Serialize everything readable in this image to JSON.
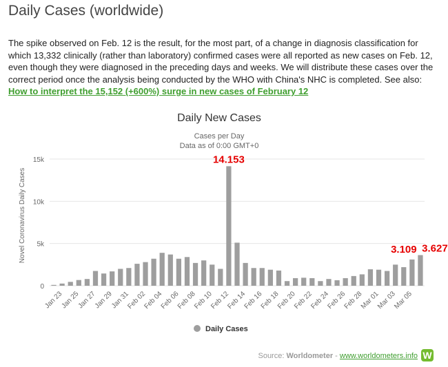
{
  "page": {
    "title": "Daily Cases (worldwide)",
    "intro": "The spike observed on Feb. 12 is the result, for the most part, of a change in diagnosis classification for which 13,332 clinically (rather than laboratory) confirmed cases were all reported as new cases on Feb. 12, even though they were diagnosed in the preceding days and weeks. We will distribute these cases over the correct period once the analysis being conducted by the WHO with China's NHC is completed.",
    "see_also_label": "See also:",
    "see_also_link": "How to interpret the 15,152 (+600%) surge in new cases of February 12",
    "source_label": "Source:",
    "source_name": "Worldometer",
    "source_sep": "-",
    "source_link": "www.worldometers.info",
    "logo_letter": "W"
  },
  "colors": {
    "bar": "#9e9e9e",
    "annotation": "#e60000",
    "link": "#3f9e2f",
    "grid": "#e6e6e6"
  },
  "chart_data": {
    "type": "bar",
    "title": "Daily New Cases",
    "subtitle_line1": "Cases per Day",
    "subtitle_line2": "Data as of 0:00 GMT+0",
    "ylabel": "Novel Coronavirus Daily Cases",
    "xlabel": "",
    "ylim": [
      0,
      15000
    ],
    "yticks": [
      0,
      5000,
      10000,
      15000
    ],
    "ytick_labels": [
      "0",
      "5k",
      "10k",
      "15k"
    ],
    "grid": true,
    "legend": {
      "position": "bottom",
      "entries": [
        "Daily Cases"
      ]
    },
    "x": [
      "Jan 22",
      "Jan 23",
      "Jan 24",
      "Jan 25",
      "Jan 26",
      "Jan 27",
      "Jan 28",
      "Jan 29",
      "Jan 30",
      "Jan 31",
      "Feb 01",
      "Feb 02",
      "Feb 03",
      "Feb 04",
      "Feb 05",
      "Feb 06",
      "Feb 07",
      "Feb 08",
      "Feb 09",
      "Feb 10",
      "Feb 11",
      "Feb 12",
      "Feb 13",
      "Feb 14",
      "Feb 15",
      "Feb 16",
      "Feb 17",
      "Feb 18",
      "Feb 19",
      "Feb 20",
      "Feb 21",
      "Feb 22",
      "Feb 23",
      "Feb 24",
      "Feb 25",
      "Feb 26",
      "Feb 27",
      "Feb 28",
      "Feb 29",
      "Mar 01",
      "Mar 02",
      "Mar 03",
      "Mar 04",
      "Mar 05",
      "Mar 06"
    ],
    "xtick_labels": [
      "Jan 23",
      "Jan 25",
      "Jan 27",
      "Jan 29",
      "Jan 31",
      "Feb 02",
      "Feb 04",
      "Feb 06",
      "Feb 08",
      "Feb 10",
      "Feb 12",
      "Feb 14",
      "Feb 16",
      "Feb 18",
      "Feb 20",
      "Feb 22",
      "Feb 24",
      "Feb 26",
      "Feb 28",
      "Mar 01",
      "Mar 03",
      "Mar 05"
    ],
    "series": [
      {
        "name": "Daily Cases",
        "values": [
          100,
          260,
          460,
          680,
          800,
          1750,
          1450,
          1700,
          2000,
          2100,
          2600,
          2800,
          3200,
          3900,
          3700,
          3200,
          3400,
          2700,
          3000,
          2500,
          2000,
          14153,
          5100,
          2700,
          2100,
          2100,
          1900,
          1800,
          550,
          900,
          950,
          900,
          550,
          800,
          650,
          900,
          1150,
          1350,
          1950,
          1900,
          1750,
          2500,
          2200,
          3109,
          3627
        ]
      }
    ],
    "annotations": [
      {
        "x": "Feb 12",
        "label": "14.153"
      },
      {
        "x": "Mar 05",
        "label": "3.109"
      },
      {
        "x": "Mar 06",
        "label": "3.627"
      }
    ]
  }
}
